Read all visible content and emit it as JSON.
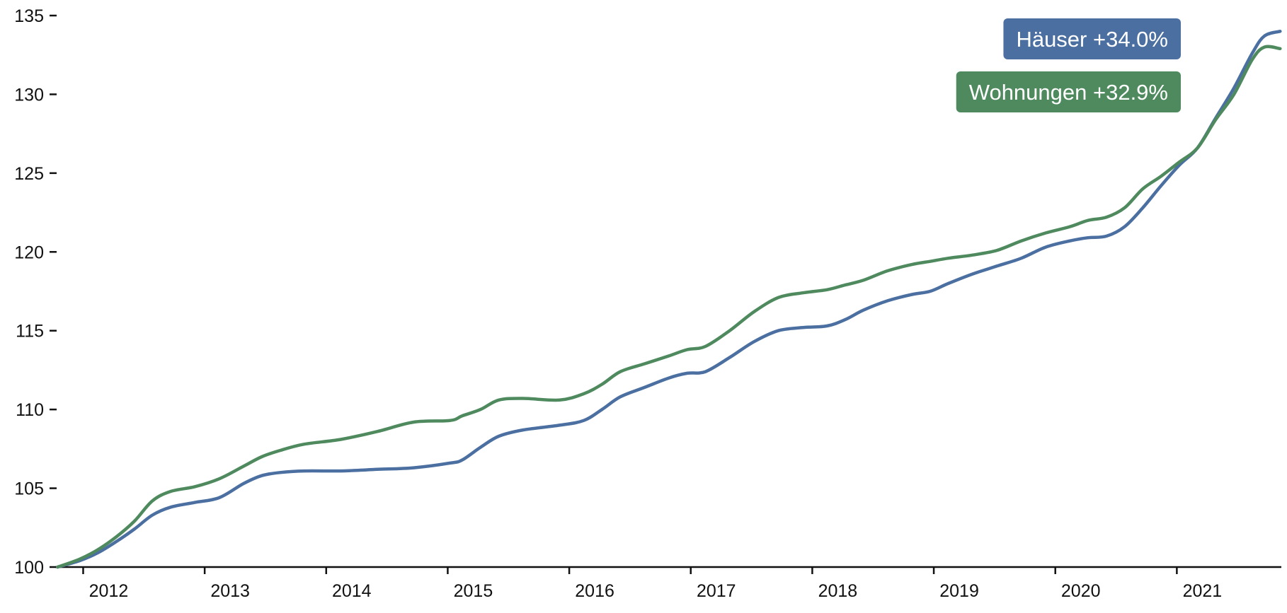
{
  "chart_data": {
    "type": "line",
    "title": "",
    "xlabel": "",
    "ylabel": "",
    "xlim": [
      2011.65,
      2021.74
    ],
    "ylim": [
      100,
      135
    ],
    "yticks": [
      100,
      105,
      110,
      115,
      120,
      125,
      130,
      135
    ],
    "xticks": [
      "2012",
      "2013",
      "2014",
      "2015",
      "2016",
      "2017",
      "2018",
      "2019",
      "2020",
      "2021"
    ],
    "grid": false,
    "legend_position": "top-right",
    "series": [
      {
        "name": "Häuser",
        "label": "Häuser +34.0%",
        "color": "#4a6fa0",
        "x": [
          2011.67,
          2011.85,
          2012.0,
          2012.15,
          2012.3,
          2012.45,
          2012.6,
          2012.8,
          2013.0,
          2013.2,
          2013.35,
          2013.5,
          2013.7,
          2014.0,
          2014.3,
          2014.6,
          2014.9,
          2015.0,
          2015.15,
          2015.3,
          2015.5,
          2015.8,
          2016.0,
          2016.15,
          2016.3,
          2016.5,
          2016.7,
          2016.85,
          2017.0,
          2017.2,
          2017.4,
          2017.6,
          2017.8,
          2018.0,
          2018.15,
          2018.3,
          2018.5,
          2018.7,
          2018.85,
          2019.0,
          2019.2,
          2019.4,
          2019.6,
          2019.8,
          2020.0,
          2020.15,
          2020.3,
          2020.45,
          2020.6,
          2020.75,
          2020.9,
          2021.05,
          2021.2,
          2021.35,
          2021.5,
          2021.6,
          2021.73
        ],
        "values": [
          100.0,
          100.4,
          100.9,
          101.6,
          102.4,
          103.3,
          103.8,
          104.1,
          104.4,
          105.3,
          105.8,
          106.0,
          106.1,
          106.1,
          106.2,
          106.3,
          106.6,
          106.8,
          107.6,
          108.3,
          108.7,
          109.0,
          109.3,
          110.0,
          110.8,
          111.4,
          112.0,
          112.3,
          112.4,
          113.3,
          114.3,
          115.0,
          115.2,
          115.3,
          115.7,
          116.3,
          116.9,
          117.3,
          117.5,
          118.0,
          118.6,
          119.1,
          119.6,
          120.3,
          120.7,
          120.9,
          121.0,
          121.6,
          122.8,
          124.2,
          125.5,
          126.6,
          128.5,
          130.4,
          132.6,
          133.7,
          134.0
        ]
      },
      {
        "name": "Wohnungen",
        "label": "Wohnungen +32.9%",
        "color": "#4e8a5e",
        "x": [
          2011.67,
          2011.85,
          2012.0,
          2012.15,
          2012.3,
          2012.45,
          2012.6,
          2012.8,
          2013.0,
          2013.2,
          2013.35,
          2013.5,
          2013.7,
          2014.0,
          2014.3,
          2014.6,
          2014.9,
          2015.0,
          2015.15,
          2015.3,
          2015.5,
          2015.8,
          2016.0,
          2016.15,
          2016.3,
          2016.5,
          2016.7,
          2016.85,
          2017.0,
          2017.2,
          2017.4,
          2017.6,
          2017.8,
          2018.0,
          2018.15,
          2018.3,
          2018.5,
          2018.7,
          2018.85,
          2019.0,
          2019.2,
          2019.4,
          2019.6,
          2019.8,
          2020.0,
          2020.15,
          2020.3,
          2020.45,
          2020.6,
          2020.75,
          2020.9,
          2021.05,
          2021.2,
          2021.35,
          2021.5,
          2021.6,
          2021.73
        ],
        "values": [
          100.0,
          100.5,
          101.1,
          101.9,
          102.9,
          104.2,
          104.8,
          105.1,
          105.6,
          106.4,
          107.0,
          107.4,
          107.8,
          108.1,
          108.6,
          109.2,
          109.3,
          109.6,
          110.0,
          110.6,
          110.7,
          110.6,
          111.0,
          111.6,
          112.4,
          112.9,
          113.4,
          113.8,
          114.0,
          115.0,
          116.2,
          117.1,
          117.4,
          117.6,
          117.9,
          118.2,
          118.8,
          119.2,
          119.4,
          119.6,
          119.8,
          120.1,
          120.7,
          121.2,
          121.6,
          122.0,
          122.2,
          122.8,
          124.0,
          124.8,
          125.7,
          126.6,
          128.4,
          130.0,
          132.2,
          133.0,
          132.9
        ]
      }
    ]
  }
}
